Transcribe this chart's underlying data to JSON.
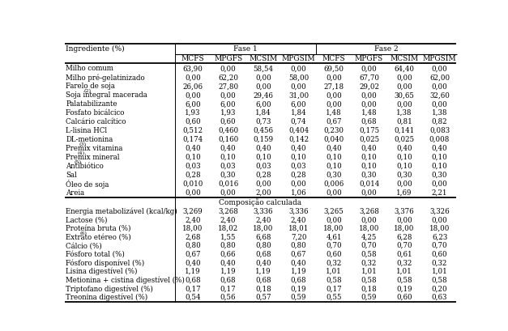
{
  "col_labels": [
    "MCFS",
    "MPGFS",
    "MCSIM",
    "MPGSIM",
    "MCFS",
    "MPGFS",
    "MCSIM",
    "MPGSIM"
  ],
  "ingredients": [
    [
      "Milho comum",
      "63,90",
      "0,00",
      "58,54",
      "0,00",
      "69,50",
      "0,00",
      "64,40",
      "0,00"
    ],
    [
      "Milho pré-gelatinizado",
      "0,00",
      "62,20",
      "0,00",
      "58,00",
      "0,00",
      "67,70",
      "0,00",
      "62,00"
    ],
    [
      "Farelo de soja",
      "26,06",
      "27,80",
      "0,00",
      "0,00",
      "27,18",
      "29,02",
      "0,00",
      "0,00"
    ],
    [
      "Soja integral macerada",
      "0,00",
      "0,00",
      "29,46",
      "31,00",
      "0,00",
      "0,00",
      "30,65",
      "32,60"
    ],
    [
      "Palatabilizante",
      "6,00",
      "6,00",
      "6,00",
      "6,00",
      "0,00",
      "0,00",
      "0,00",
      "0,00"
    ],
    [
      "Fosfato bicálcico",
      "1,93",
      "1,93",
      "1,84",
      "1,84",
      "1,48",
      "1,48",
      "1,38",
      "1,38"
    ],
    [
      "Calcário calcítico",
      "0,60",
      "0,60",
      "0,73",
      "0,74",
      "0,67",
      "0,68",
      "0,81",
      "0,82"
    ],
    [
      "L-lisina HCl",
      "0,512",
      "0,460",
      "0,456",
      "0,404",
      "0,230",
      "0,175",
      "0,141",
      "0,083"
    ],
    [
      "DL-metionina",
      "0,174",
      "0,160",
      "0,159",
      "0,142",
      "0,040",
      "0,025",
      "0,025",
      "0,008"
    ],
    [
      "Premix vitamina",
      "0,40",
      "0,40",
      "0,40",
      "0,40",
      "0,40",
      "0,40",
      "0,40",
      "0,40"
    ],
    [
      "Premix mineral",
      "0,10",
      "0,10",
      "0,10",
      "0,10",
      "0,10",
      "0,10",
      "0,10",
      "0,10"
    ],
    [
      "Antibiótico",
      "0,03",
      "0,03",
      "0,03",
      "0,03",
      "0,10",
      "0,10",
      "0,10",
      "0,10"
    ],
    [
      "Sal",
      "0,28",
      "0,30",
      "0,28",
      "0,28",
      "0,30",
      "0,30",
      "0,30",
      "0,30"
    ],
    [
      "Óleo de soja",
      "0,010",
      "0,016",
      "0,00",
      "0,00",
      "0,006",
      "0,014",
      "0,00",
      "0,00"
    ],
    [
      "Areia",
      "0,00",
      "0,00",
      "2,00",
      "1,06",
      "0,00",
      "0,00",
      "1,69",
      "2,21"
    ]
  ],
  "ingr_superscripts": [
    null,
    null,
    null,
    "(2)",
    null,
    null,
    null,
    null,
    null,
    "(3)",
    "(4)",
    "(5)",
    null,
    null,
    null
  ],
  "composition_header": "Composição calculada",
  "composition": [
    [
      "Energia metabolizável (kcal/kg)",
      "3,269",
      "3,268",
      "3,336",
      "3,336",
      "3,265",
      "3,268",
      "3,376",
      "3,326"
    ],
    [
      "Lactose (%)",
      "2,40",
      "2,40",
      "2,40",
      "2,40",
      "0,00",
      "0,00",
      "0,00",
      "0,00"
    ],
    [
      "Proteína bruta (%)",
      "18,00",
      "18,02",
      "18,00",
      "18,01",
      "18,00",
      "18,00",
      "18,00",
      "18,00"
    ],
    [
      "Extrato etéreo (%)",
      "2,68",
      "1,55",
      "6,68",
      "7,20",
      "4,61",
      "4,25",
      "6,28",
      "6,23"
    ],
    [
      "Cálcio (%)",
      "0,80",
      "0,80",
      "0,80",
      "0,80",
      "0,70",
      "0,70",
      "0,70",
      "0,70"
    ],
    [
      "Fósforo total (%)",
      "0,67",
      "0,66",
      "0,68",
      "0,67",
      "0,60",
      "0,58",
      "0,61",
      "0,60"
    ],
    [
      "Fósforo disponível (%)",
      "0,40",
      "0,40",
      "0,40",
      "0,40",
      "0,32",
      "0,32",
      "0,32",
      "0,32"
    ],
    [
      "Lisina digestível (%)",
      "1,19",
      "1,19",
      "1,19",
      "1,19",
      "1,01",
      "1,01",
      "1,01",
      "1,01"
    ],
    [
      "Metionina + cistina digestível (%)",
      "0,68",
      "0,68",
      "0,68",
      "0,68",
      "0,58",
      "0,58",
      "0,58",
      "0,58"
    ],
    [
      "Triptofano digestível (%)",
      "0,17",
      "0,17",
      "0,18",
      "0,19",
      "0,17",
      "0,18",
      "0,19",
      "0,20"
    ],
    [
      "Treonina digestível (%)",
      "0,54",
      "0,56",
      "0,57",
      "0,59",
      "0,55",
      "0,59",
      "0,60",
      "0,63"
    ]
  ],
  "comp_superscripts": [
    null,
    null,
    null,
    "(6)",
    null,
    null,
    null,
    null,
    null,
    null,
    null
  ],
  "ingr_label_offsets": [
    null,
    null,
    null,
    0.168,
    null,
    null,
    null,
    null,
    null,
    0.118,
    0.108,
    0.074,
    null,
    null,
    null
  ],
  "comp_label_offsets": [
    null,
    null,
    null,
    0.13,
    null,
    null,
    null,
    null,
    null,
    null,
    null
  ]
}
